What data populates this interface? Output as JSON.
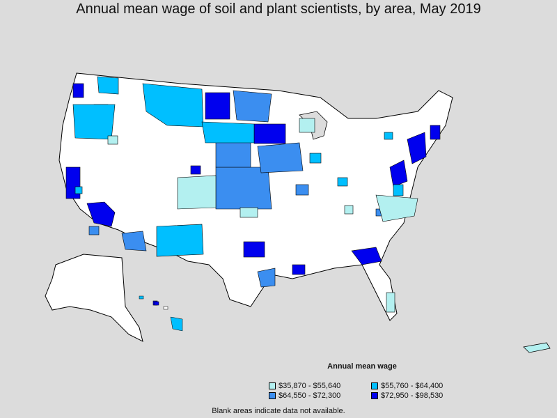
{
  "title": "Annual mean wage of soil and plant scientists, by area, May 2019",
  "legend": {
    "title": "Annual mean wage",
    "items": [
      {
        "label": "$35,870 - $55,640",
        "color": "#b3f0f0"
      },
      {
        "label": "$55,760 - $64,400",
        "color": "#00bfff"
      },
      {
        "label": "$64,550 - $72,300",
        "color": "#3b8ef0"
      },
      {
        "label": "$72,950 - $98,530",
        "color": "#0000ee"
      }
    ]
  },
  "footnote": "Blank areas indicate data not available.",
  "colors": {
    "background": "#dcdcdc",
    "blank": "#ffffff",
    "border": "#000000"
  }
}
